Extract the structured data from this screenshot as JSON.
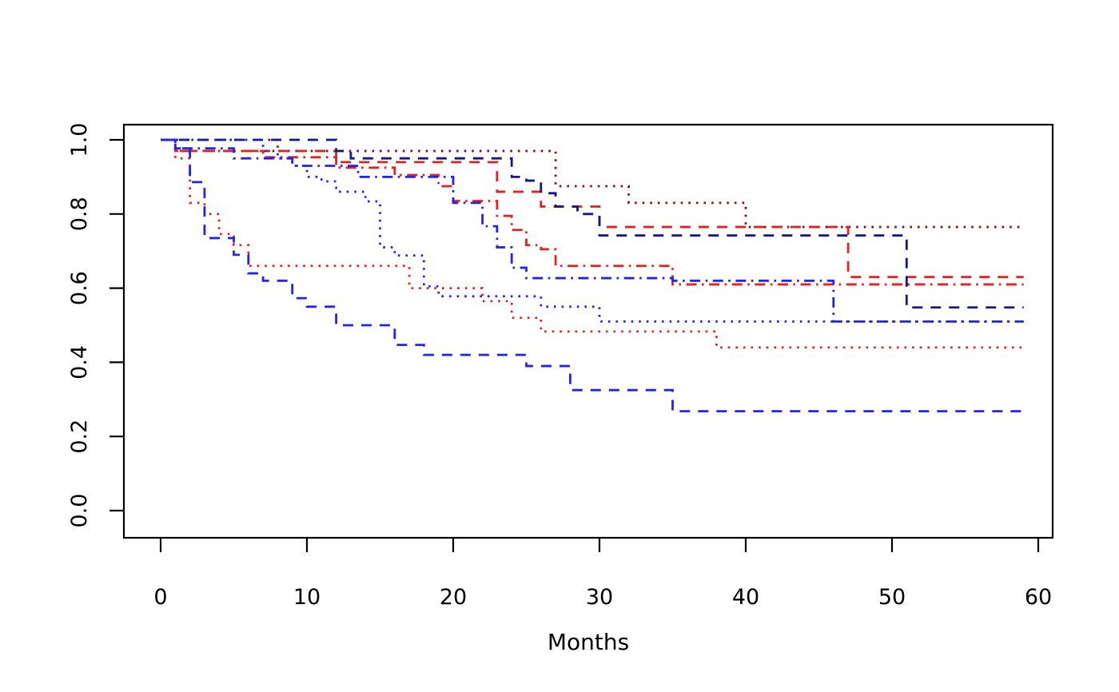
{
  "chart_data": {
    "type": "line",
    "subtype": "kaplan-meier-step",
    "title": "",
    "xlabel": "Months",
    "ylabel": "",
    "xlim": [
      0,
      60
    ],
    "ylim": [
      0.0,
      1.0
    ],
    "x_ticks": [
      "0",
      "10",
      "20",
      "30",
      "40",
      "50",
      "60"
    ],
    "x_tick_values": [
      0,
      10,
      20,
      30,
      40,
      50,
      60
    ],
    "y_ticks": [
      "0.0",
      "0.2",
      "0.4",
      "0.6",
      "0.8",
      "1.0"
    ],
    "y_tick_values": [
      0.0,
      0.2,
      0.4,
      0.6,
      0.8,
      1.0
    ],
    "grid": false,
    "legend_position": "none",
    "colors": {
      "red": "#e32121",
      "darkred": "#8b0f0f",
      "blue": "#2323f0",
      "darkblue": "#15158c"
    },
    "series": [
      {
        "name": "darkred-dotted",
        "color": "#8b0f0f",
        "linestyle": "dotted",
        "points": [
          [
            0,
            1.0
          ],
          [
            8,
            0.97
          ],
          [
            27,
            0.875
          ],
          [
            32,
            0.83
          ],
          [
            40,
            0.765
          ],
          [
            59,
            0.765
          ]
        ]
      },
      {
        "name": "red-dashed",
        "color": "#e32121",
        "linestyle": "dashed",
        "points": [
          [
            0,
            1.0
          ],
          [
            1,
            0.97
          ],
          [
            12,
            0.94
          ],
          [
            23,
            0.86
          ],
          [
            26,
            0.82
          ],
          [
            30,
            0.765
          ],
          [
            47,
            0.63
          ],
          [
            59,
            0.63
          ]
        ]
      },
      {
        "name": "red-dashdot",
        "color": "#e32121",
        "linestyle": "dashdot",
        "points": [
          [
            0,
            1.0
          ],
          [
            1,
            0.97
          ],
          [
            7,
            0.953
          ],
          [
            12,
            0.925
          ],
          [
            16,
            0.905
          ],
          [
            19,
            0.875
          ],
          [
            20,
            0.835
          ],
          [
            23,
            0.795
          ],
          [
            24,
            0.757
          ],
          [
            25,
            0.716
          ],
          [
            26,
            0.705
          ],
          [
            27,
            0.66
          ],
          [
            35,
            0.61
          ],
          [
            59,
            0.61
          ]
        ]
      },
      {
        "name": "red-dotted",
        "color": "#e32121",
        "linestyle": "dotted",
        "points": [
          [
            0,
            1.0
          ],
          [
            1,
            0.95
          ],
          [
            2,
            0.83
          ],
          [
            3,
            0.8
          ],
          [
            4,
            0.746
          ],
          [
            5,
            0.716
          ],
          [
            6,
            0.66
          ],
          [
            17,
            0.6
          ],
          [
            22,
            0.565
          ],
          [
            24,
            0.52
          ],
          [
            26,
            0.483
          ],
          [
            38,
            0.44
          ],
          [
            59,
            0.44
          ]
        ]
      },
      {
        "name": "darkblue-dashed",
        "color": "#15158c",
        "linestyle": "dashed",
        "points": [
          [
            0,
            1.0
          ],
          [
            12,
            0.97
          ],
          [
            13,
            0.95
          ],
          [
            24,
            0.9
          ],
          [
            25,
            0.89
          ],
          [
            26,
            0.856
          ],
          [
            27,
            0.82
          ],
          [
            28.5,
            0.8
          ],
          [
            30,
            0.742
          ],
          [
            51,
            0.548
          ],
          [
            59,
            0.548
          ]
        ]
      },
      {
        "name": "blue-dashed",
        "color": "#2323f0",
        "linestyle": "dashed",
        "points": [
          [
            0,
            1.0
          ],
          [
            1,
            0.977
          ],
          [
            2,
            0.886
          ],
          [
            3,
            0.735
          ],
          [
            5,
            0.69
          ],
          [
            6,
            0.64
          ],
          [
            7,
            0.62
          ],
          [
            9,
            0.573
          ],
          [
            10,
            0.55
          ],
          [
            12,
            0.5
          ],
          [
            16,
            0.447
          ],
          [
            18,
            0.42
          ],
          [
            25,
            0.39
          ],
          [
            28,
            0.325
          ],
          [
            35,
            0.268
          ],
          [
            59,
            0.268
          ]
        ]
      },
      {
        "name": "blue-dotted",
        "color": "#2323f0",
        "linestyle": "dotted",
        "points": [
          [
            0,
            1.0
          ],
          [
            7,
            0.97
          ],
          [
            8,
            0.95
          ],
          [
            9,
            0.93
          ],
          [
            10,
            0.9
          ],
          [
            11,
            0.888
          ],
          [
            12,
            0.86
          ],
          [
            14,
            0.834
          ],
          [
            15,
            0.71
          ],
          [
            16,
            0.688
          ],
          [
            18,
            0.605
          ],
          [
            19,
            0.578
          ],
          [
            26,
            0.55
          ],
          [
            30,
            0.51
          ],
          [
            59,
            0.51
          ]
        ]
      },
      {
        "name": "blue-dashdot",
        "color": "#2323f0",
        "linestyle": "dashdot",
        "points": [
          [
            0,
            1.0
          ],
          [
            1,
            0.977
          ],
          [
            5,
            0.95
          ],
          [
            9,
            0.93
          ],
          [
            13.5,
            0.9
          ],
          [
            20,
            0.83
          ],
          [
            22,
            0.767
          ],
          [
            23,
            0.71
          ],
          [
            24,
            0.655
          ],
          [
            25,
            0.627
          ],
          [
            35,
            0.62
          ],
          [
            46,
            0.51
          ],
          [
            59,
            0.51
          ]
        ]
      }
    ]
  }
}
